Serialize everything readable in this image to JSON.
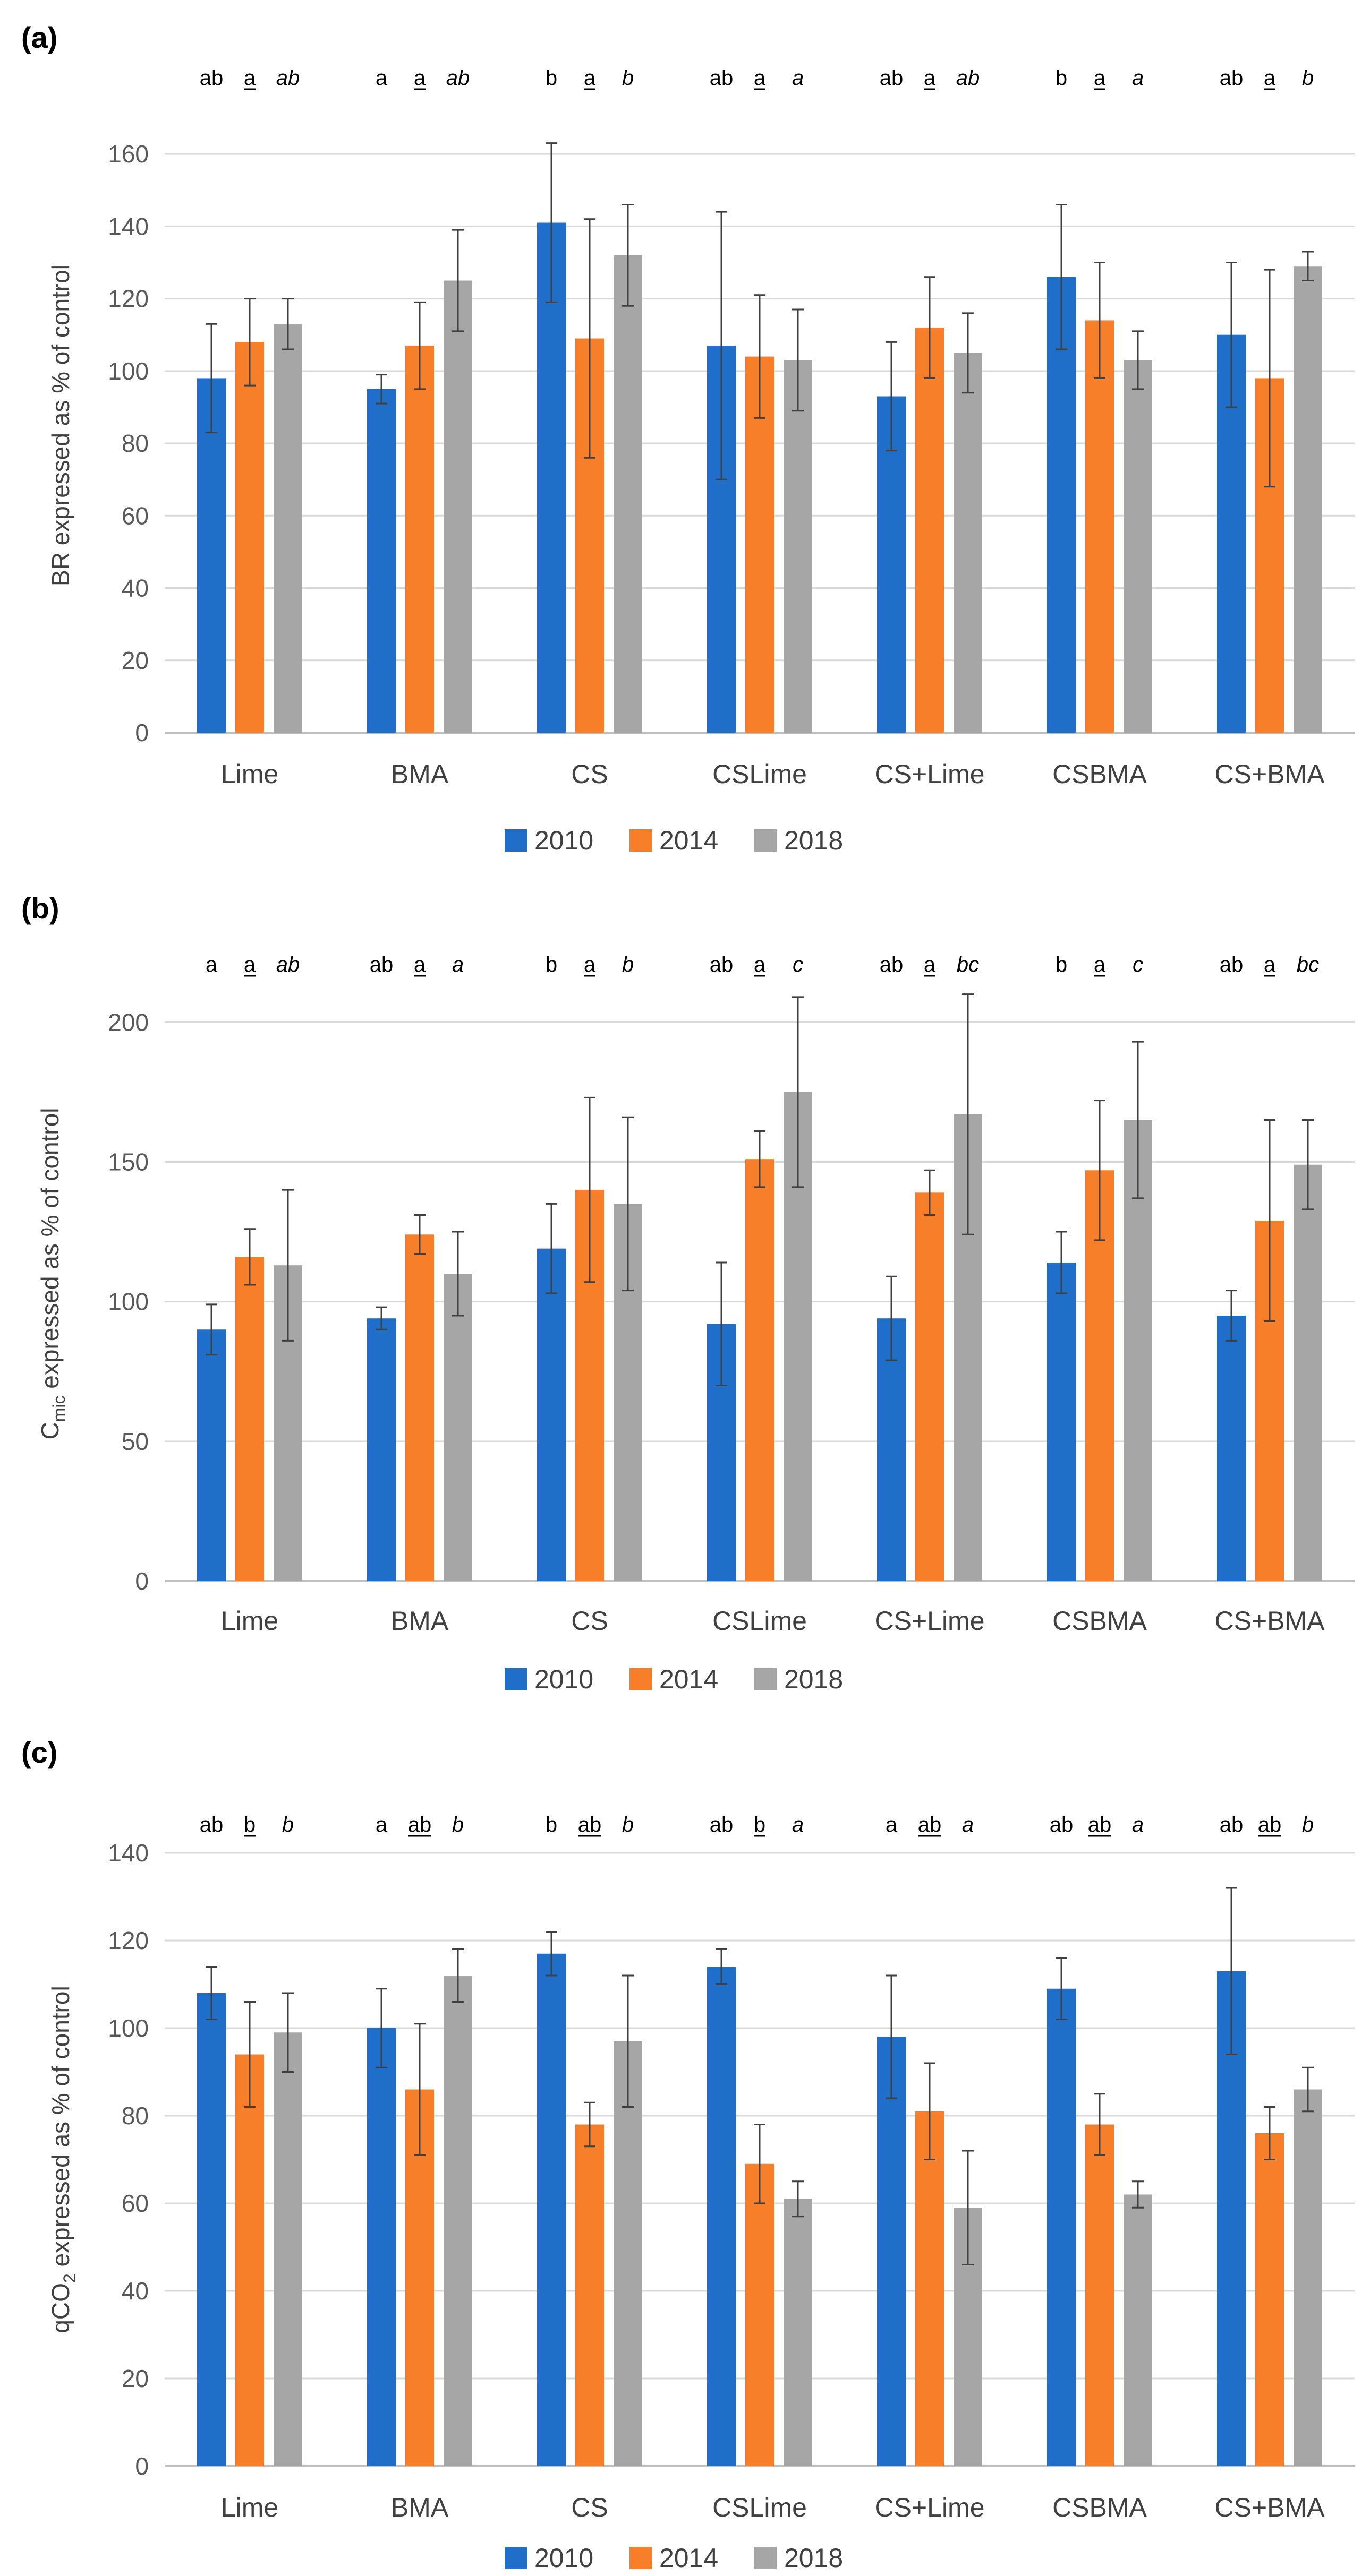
{
  "figure": {
    "colors": {
      "s2010": "#1F6FC9",
      "s2014": "#F77F2A",
      "s2018": "#A6A6A6",
      "grid": "#D9D9D9",
      "axis": "#BFBFBF",
      "errorbar": "#404040"
    },
    "legend": [
      "2010",
      "2014",
      "2018"
    ]
  },
  "chart_data": [
    {
      "type": "bar",
      "panel_label": "(a)",
      "ylabel": "BR expressed as % of control",
      "ylim": [
        0,
        170
      ],
      "yticks": [
        0,
        20,
        40,
        60,
        80,
        100,
        120,
        140,
        160
      ],
      "grid": true,
      "legend_position": "bottom",
      "categories": [
        "Lime",
        "BMA",
        "CS",
        "CSLime",
        "CS+Lime",
        "CSBMA",
        "CS+BMA"
      ],
      "series": [
        {
          "name": "2010",
          "values": [
            98,
            95,
            141,
            107,
            93,
            126,
            110
          ],
          "errors": [
            15,
            4,
            22,
            37,
            15,
            20,
            20
          ]
        },
        {
          "name": "2014",
          "values": [
            108,
            107,
            109,
            104,
            112,
            114,
            98
          ],
          "errors": [
            12,
            12,
            33,
            17,
            14,
            16,
            30
          ]
        },
        {
          "name": "2018",
          "values": [
            113,
            125,
            132,
            103,
            105,
            103,
            129
          ],
          "errors": [
            7,
            14,
            14,
            14,
            11,
            8,
            4
          ]
        }
      ],
      "sig_letters": [
        [
          "ab",
          "a",
          "ab"
        ],
        [
          "a",
          "a",
          "ab"
        ],
        [
          "b",
          "a",
          "b"
        ],
        [
          "ab",
          "a",
          "a"
        ],
        [
          "ab",
          "a",
          "ab"
        ],
        [
          "b",
          "a",
          "a"
        ],
        [
          "ab",
          "a",
          "b"
        ]
      ]
    },
    {
      "type": "bar",
      "panel_label": "(b)",
      "ylabel": "Cmic expressed as % of control",
      "ylabel_main": "C",
      "ylabel_sub": "mic",
      "ylabel_rest": " expressed as % of control",
      "ylim": [
        0,
        220
      ],
      "yticks": [
        0,
        50,
        100,
        150,
        200
      ],
      "grid": true,
      "legend_position": "bottom",
      "categories": [
        "Lime",
        "BMA",
        "CS",
        "CSLime",
        "CS+Lime",
        "CSBMA",
        "CS+BMA"
      ],
      "series": [
        {
          "name": "2010",
          "values": [
            90,
            94,
            119,
            92,
            94,
            114,
            95
          ],
          "errors": [
            9,
            4,
            16,
            22,
            15,
            11,
            9
          ]
        },
        {
          "name": "2014",
          "values": [
            116,
            124,
            140,
            151,
            139,
            147,
            129
          ],
          "errors": [
            10,
            7,
            33,
            10,
            8,
            25,
            36
          ]
        },
        {
          "name": "2018",
          "values": [
            113,
            110,
            135,
            175,
            167,
            165,
            149
          ],
          "errors": [
            27,
            15,
            31,
            34,
            43,
            28,
            16
          ]
        }
      ],
      "sig_letters": [
        [
          "a",
          "a",
          "ab"
        ],
        [
          "ab",
          "a",
          "a"
        ],
        [
          "b",
          "a",
          "b"
        ],
        [
          "ab",
          "a",
          "c"
        ],
        [
          "ab",
          "a",
          "bc"
        ],
        [
          "b",
          "a",
          "c"
        ],
        [
          "ab",
          "a",
          "bc"
        ]
      ]
    },
    {
      "type": "bar",
      "panel_label": "(c)",
      "ylabel": "qCO2 expressed as % of control",
      "ylabel_main": "qCO",
      "ylabel_sub": "2",
      "ylabel_rest": " expressed as % of control",
      "ylim": [
        0,
        140
      ],
      "yticks": [
        0,
        20,
        40,
        60,
        80,
        100,
        120,
        140
      ],
      "grid": true,
      "legend_position": "bottom",
      "categories": [
        "Lime",
        "BMA",
        "CS",
        "CSLime",
        "CS+Lime",
        "CSBMA",
        "CS+BMA"
      ],
      "series": [
        {
          "name": "2010",
          "values": [
            108,
            100,
            117,
            114,
            98,
            109,
            113
          ],
          "errors": [
            6,
            9,
            5,
            4,
            14,
            7,
            19
          ]
        },
        {
          "name": "2014",
          "values": [
            94,
            86,
            78,
            69,
            81,
            78,
            76
          ],
          "errors": [
            12,
            15,
            5,
            9,
            11,
            7,
            6
          ]
        },
        {
          "name": "2018",
          "values": [
            99,
            112,
            97,
            61,
            59,
            62,
            86
          ],
          "errors": [
            9,
            6,
            15,
            4,
            13,
            3,
            5
          ]
        }
      ],
      "sig_letters": [
        [
          "ab",
          "b",
          "b"
        ],
        [
          "a",
          "ab",
          "b"
        ],
        [
          "b",
          "ab",
          "b"
        ],
        [
          "ab",
          "b",
          "a"
        ],
        [
          "a",
          "ab",
          "a"
        ],
        [
          "ab",
          "ab",
          "a"
        ],
        [
          "ab",
          "ab",
          "b"
        ]
      ]
    }
  ]
}
